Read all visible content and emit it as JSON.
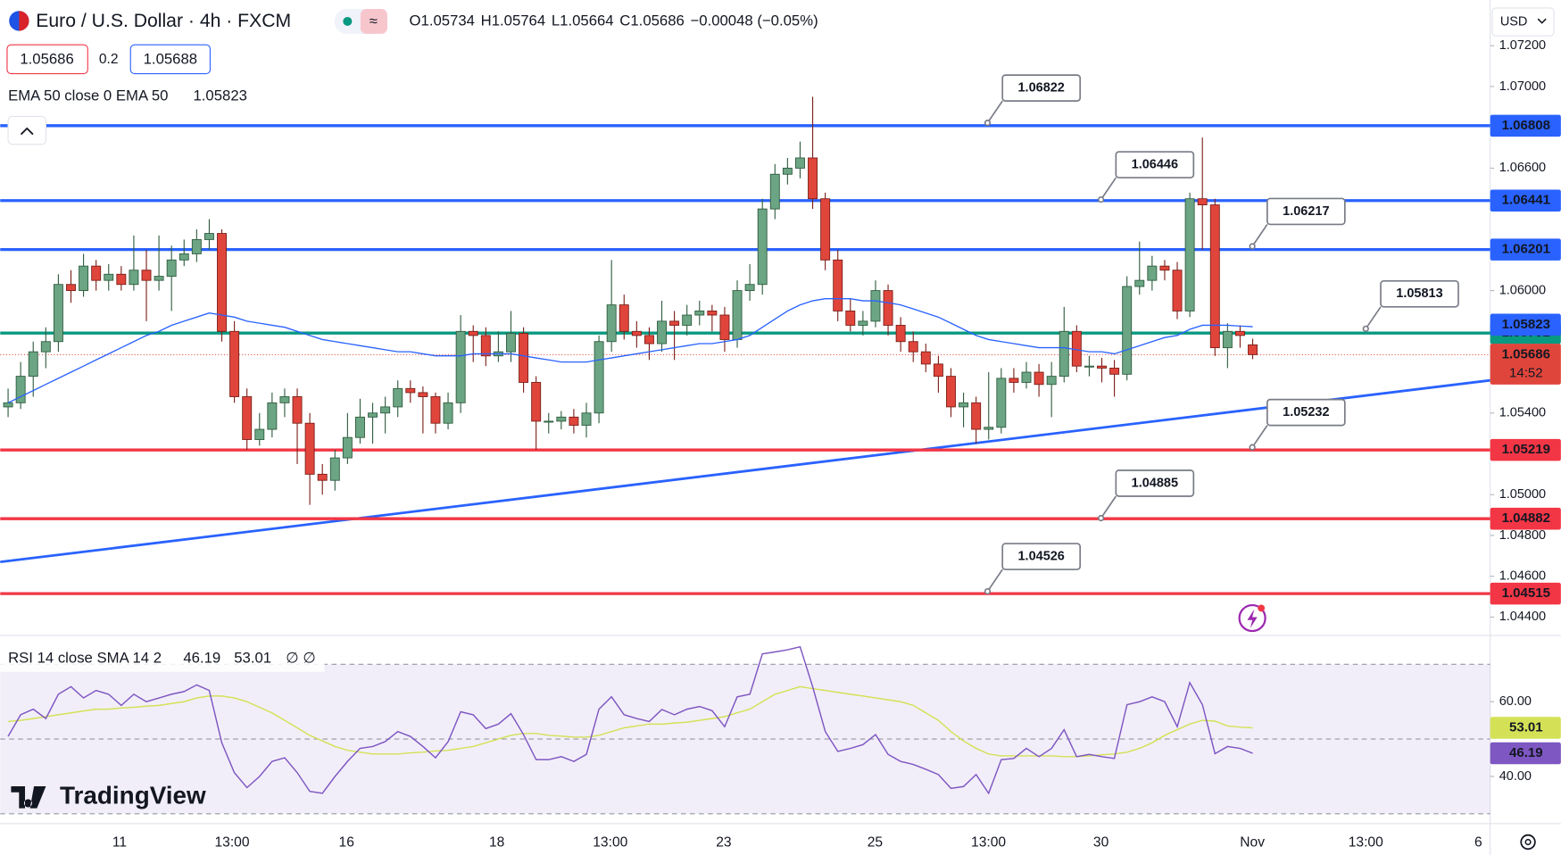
{
  "chart_data": {
    "type": "candlestick",
    "title": "Euro / U.S. Dollar · 4h · FXCM",
    "ohlc_prefixes": [
      "O",
      "H",
      "L",
      "C"
    ],
    "change": "−0.00048 (−0.05%)",
    "spread": "0.2",
    "ask": "1.05688",
    "currency": "USD",
    "countdown": "14:52",
    "brand": "TradingView",
    "colors": {
      "up": "#6ba583",
      "down": "#e0453b",
      "up_edge": "#2f5c3f",
      "down_edge": "#7a1f18"
    },
    "ylim": [
      1.04312,
      1.07424
    ],
    "yticks": [
      {
        "value": 1.072,
        "label": "1.07200"
      },
      {
        "value": 1.07,
        "label": "1.07000"
      },
      {
        "value": 1.066,
        "label": "1.06600"
      },
      {
        "value": 1.06,
        "label": "1.06000"
      },
      {
        "value": 1.054,
        "label": "1.05400"
      },
      {
        "value": 1.05,
        "label": "1.05000"
      },
      {
        "value": 1.048,
        "label": "1.04800"
      },
      {
        "value": 1.046,
        "label": "1.04600"
      },
      {
        "value": 1.044,
        "label": "1.04400"
      }
    ],
    "x_labels": [
      "11",
      "13:00",
      "16",
      "18",
      "13:00",
      "23",
      "25",
      "13:00",
      "30",
      "Nov",
      "13:00",
      "6"
    ],
    "candles": [
      [
        1.0543,
        1.0552,
        1.0538,
        1.0545
      ],
      [
        1.0545,
        1.0565,
        1.0542,
        1.0558
      ],
      [
        1.0558,
        1.0575,
        1.0548,
        1.057
      ],
      [
        1.057,
        1.0582,
        1.0562,
        1.0575
      ],
      [
        1.0575,
        1.0608,
        1.057,
        1.0603
      ],
      [
        1.0603,
        1.061,
        1.0594,
        1.06
      ],
      [
        1.06,
        1.0618,
        1.0597,
        1.0612
      ],
      [
        1.0612,
        1.0615,
        1.06,
        1.0605
      ],
      [
        1.0605,
        1.0613,
        1.06,
        1.0608
      ],
      [
        1.0608,
        1.0612,
        1.06,
        1.0603
      ],
      [
        1.0603,
        1.0627,
        1.06,
        1.061
      ],
      [
        1.061,
        1.062,
        1.0585,
        1.0605
      ],
      [
        1.0605,
        1.0627,
        1.06,
        1.0607
      ],
      [
        1.0607,
        1.0622,
        1.059,
        1.0615
      ],
      [
        1.0615,
        1.0625,
        1.0612,
        1.0618
      ],
      [
        1.0618,
        1.063,
        1.0614,
        1.0625
      ],
      [
        1.0625,
        1.0635,
        1.062,
        1.0628
      ],
      [
        1.0628,
        1.063,
        1.0575,
        1.058
      ],
      [
        1.058,
        1.0585,
        1.0545,
        1.0548
      ],
      [
        1.0548,
        1.0552,
        1.0522,
        1.0527
      ],
      [
        1.0527,
        1.054,
        1.0524,
        1.0532
      ],
      [
        1.0532,
        1.055,
        1.0528,
        1.0545
      ],
      [
        1.0545,
        1.0552,
        1.0538,
        1.0548
      ],
      [
        1.0548,
        1.0552,
        1.0515,
        1.0535
      ],
      [
        1.0535,
        1.054,
        1.0495,
        1.051
      ],
      [
        1.051,
        1.0515,
        1.05,
        1.0507
      ],
      [
        1.0507,
        1.0522,
        1.0502,
        1.0518
      ],
      [
        1.0518,
        1.054,
        1.0515,
        1.0528
      ],
      [
        1.0528,
        1.0547,
        1.0525,
        1.0538
      ],
      [
        1.0538,
        1.0545,
        1.0525,
        1.054
      ],
      [
        1.054,
        1.0548,
        1.053,
        1.0543
      ],
      [
        1.0543,
        1.0556,
        1.0538,
        1.0552
      ],
      [
        1.0552,
        1.0556,
        1.0545,
        1.055
      ],
      [
        1.055,
        1.0553,
        1.053,
        1.0548
      ],
      [
        1.0548,
        1.055,
        1.053,
        1.0535
      ],
      [
        1.0535,
        1.055,
        1.0532,
        1.0545
      ],
      [
        1.0545,
        1.0588,
        1.054,
        1.058
      ],
      [
        1.058,
        1.0583,
        1.0565,
        1.0578
      ],
      [
        1.0578,
        1.0582,
        1.0563,
        1.0568
      ],
      [
        1.0568,
        1.058,
        1.0565,
        1.057
      ],
      [
        1.057,
        1.059,
        1.0565,
        1.0579
      ],
      [
        1.0579,
        1.0582,
        1.055,
        1.0555
      ],
      [
        1.0555,
        1.0558,
        1.0522,
        1.0536
      ],
      [
        1.0536,
        1.054,
        1.053,
        1.0536
      ],
      [
        1.0536,
        1.0541,
        1.0532,
        1.0538
      ],
      [
        1.0538,
        1.0542,
        1.053,
        1.0534
      ],
      [
        1.0534,
        1.0545,
        1.0528,
        1.054
      ],
      [
        1.054,
        1.0578,
        1.0535,
        1.0575
      ],
      [
        1.0575,
        1.0615,
        1.057,
        1.0593
      ],
      [
        1.0593,
        1.0598,
        1.0576,
        1.058
      ],
      [
        1.058,
        1.0585,
        1.0572,
        1.0578
      ],
      [
        1.0578,
        1.0582,
        1.0566,
        1.0574
      ],
      [
        1.0574,
        1.0595,
        1.057,
        1.0585
      ],
      [
        1.0585,
        1.059,
        1.0566,
        1.0583
      ],
      [
        1.0583,
        1.0593,
        1.0578,
        1.0588
      ],
      [
        1.0588,
        1.0595,
        1.0583,
        1.059
      ],
      [
        1.059,
        1.0593,
        1.058,
        1.0588
      ],
      [
        1.0588,
        1.0592,
        1.057,
        1.0576
      ],
      [
        1.0576,
        1.0605,
        1.0572,
        1.06
      ],
      [
        1.06,
        1.0613,
        1.0595,
        1.0603
      ],
      [
        1.0603,
        1.0645,
        1.0598,
        1.064
      ],
      [
        1.064,
        1.0662,
        1.0635,
        1.0657
      ],
      [
        1.0657,
        1.0665,
        1.0652,
        1.066
      ],
      [
        1.066,
        1.0673,
        1.0655,
        1.0665
      ],
      [
        1.0665,
        1.0695,
        1.064,
        1.0645
      ],
      [
        1.0645,
        1.0648,
        1.061,
        1.0615
      ],
      [
        1.0615,
        1.062,
        1.0585,
        1.059
      ],
      [
        1.059,
        1.0596,
        1.058,
        1.0583
      ],
      [
        1.0583,
        1.059,
        1.0578,
        1.0585
      ],
      [
        1.0585,
        1.0605,
        1.0582,
        1.06
      ],
      [
        1.06,
        1.0603,
        1.0578,
        1.0583
      ],
      [
        1.0583,
        1.0587,
        1.057,
        1.0575
      ],
      [
        1.0575,
        1.058,
        1.0565,
        1.057
      ],
      [
        1.057,
        1.0574,
        1.056,
        1.0564
      ],
      [
        1.0564,
        1.0568,
        1.055,
        1.0558
      ],
      [
        1.0558,
        1.0562,
        1.0538,
        1.0543
      ],
      [
        1.0543,
        1.055,
        1.0533,
        1.0545
      ],
      [
        1.0545,
        1.0548,
        1.0525,
        1.0532
      ],
      [
        1.0532,
        1.056,
        1.0527,
        1.0533
      ],
      [
        1.0533,
        1.0562,
        1.053,
        1.0557
      ],
      [
        1.0557,
        1.0562,
        1.055,
        1.0555
      ],
      [
        1.0555,
        1.0565,
        1.0552,
        1.056
      ],
      [
        1.056,
        1.0564,
        1.0548,
        1.0554
      ],
      [
        1.0554,
        1.0565,
        1.0538,
        1.0558
      ],
      [
        1.0558,
        1.0592,
        1.0555,
        1.058
      ],
      [
        1.058,
        1.0583,
        1.056,
        1.0563
      ],
      [
        1.0563,
        1.0568,
        1.0558,
        1.0563
      ],
      [
        1.0563,
        1.0567,
        1.0555,
        1.0562
      ],
      [
        1.0562,
        1.0566,
        1.0548,
        1.0559
      ],
      [
        1.0559,
        1.0607,
        1.0556,
        1.0602
      ],
      [
        1.0602,
        1.0624,
        1.0598,
        1.0605
      ],
      [
        1.0605,
        1.0617,
        1.06,
        1.0612
      ],
      [
        1.0612,
        1.0615,
        1.0605,
        1.061
      ],
      [
        1.061,
        1.0614,
        1.0586,
        1.059
      ],
      [
        1.059,
        1.0648,
        1.0587,
        1.0645
      ],
      [
        1.0645,
        1.0675,
        1.062,
        1.0642
      ],
      [
        1.0642,
        1.0645,
        1.0568,
        1.0572
      ],
      [
        1.0572,
        1.0584,
        1.0562,
        1.058
      ],
      [
        1.058,
        1.0583,
        1.0572,
        1.0578
      ],
      [
        1.05734,
        1.05764,
        1.05664,
        1.05686
      ]
    ],
    "ema": {
      "name": "EMA 50 close 0 EMA 50",
      "color": "#2962ff",
      "values": [
        1.0545,
        1.0548,
        1.0551,
        1.0554,
        1.0557,
        1.056,
        1.0563,
        1.0566,
        1.0569,
        1.0572,
        1.0575,
        1.0578,
        1.058,
        1.0583,
        1.0585,
        1.0587,
        1.0589,
        1.0588,
        1.0587,
        1.0585,
        1.0584,
        1.0583,
        1.0582,
        1.058,
        1.0578,
        1.0576,
        1.0575,
        1.0574,
        1.0573,
        1.0572,
        1.0571,
        1.057,
        1.057,
        1.0569,
        1.0568,
        1.0568,
        1.0568,
        1.0569,
        1.0569,
        1.0569,
        1.0569,
        1.0568,
        1.0567,
        1.0566,
        1.0565,
        1.0565,
        1.0565,
        1.0566,
        1.0567,
        1.0568,
        1.0569,
        1.057,
        1.0571,
        1.0572,
        1.0573,
        1.0574,
        1.0574,
        1.0575,
        1.0576,
        1.0578,
        1.0582,
        1.0586,
        1.059,
        1.0593,
        1.0595,
        1.0596,
        1.0596,
        1.0596,
        1.0595,
        1.0595,
        1.0594,
        1.0593,
        1.0591,
        1.0589,
        1.0587,
        1.0584,
        1.0581,
        1.0578,
        1.0576,
        1.0575,
        1.0574,
        1.0573,
        1.0572,
        1.0572,
        1.0572,
        1.0571,
        1.057,
        1.057,
        1.0569,
        1.0571,
        1.0573,
        1.0575,
        1.0577,
        1.0578,
        1.0581,
        1.0583,
        1.0583,
        1.0583,
        1.05826,
        1.05823
      ]
    },
    "levels": [
      {
        "value": 1.06808,
        "color": "#2962ff"
      },
      {
        "value": 1.06441,
        "color": "#2962ff"
      },
      {
        "value": 1.06201,
        "color": "#2962ff"
      },
      {
        "value": 1.05792,
        "color": "#089981"
      },
      {
        "value": 1.05219,
        "color": "#f23645"
      },
      {
        "value": 1.04882,
        "color": "#f23645"
      },
      {
        "value": 1.04515,
        "color": "#f23645"
      }
    ],
    "callouts": [
      1.06822,
      1.06446,
      1.06217,
      1.05813,
      1.05232,
      1.04885,
      1.04526
    ],
    "trendline": {
      "values": [
        1.0467,
        1.0556
      ],
      "color": "#2962ff"
    },
    "indicator": {
      "name": "RSI 14 close SMA 14 2",
      "extra": "∅ ∅",
      "ylim": [
        27.5,
        77.3
      ],
      "yticks": [
        {
          "value": 60,
          "label": "60.00"
        },
        {
          "value": 40,
          "label": "40.00"
        }
      ],
      "levels": [
        70,
        50,
        30
      ],
      "rsi": {
        "color": "#7e57c2",
        "values": [
          50.7,
          56.5,
          58,
          55.5,
          62,
          64,
          61,
          63,
          62,
          59,
          62,
          60,
          61,
          62,
          62.7,
          64.5,
          63,
          49,
          41,
          37,
          40,
          44,
          45,
          41,
          36,
          35.5,
          40,
          44,
          47.5,
          48,
          49.3,
          52,
          50.7,
          48,
          45,
          49.3,
          57.3,
          56.5,
          52.8,
          54,
          56.8,
          51.2,
          44.5,
          44.5,
          45.3,
          44,
          45.9,
          58,
          61.3,
          56.5,
          55.5,
          54.7,
          57.9,
          56.5,
          58,
          58.7,
          57.6,
          53.3,
          61.3,
          62,
          72.8,
          73.3,
          73.9,
          74.7,
          64,
          52,
          46.7,
          47.5,
          48.5,
          51.2,
          45.9,
          44,
          43.2,
          41.9,
          40.5,
          36.8,
          37.3,
          40.5,
          35.5,
          44.5,
          44.8,
          47.5,
          45.3,
          47.5,
          52.5,
          45.3,
          45.9,
          45.3,
          44.8,
          59.2,
          60,
          61.3,
          60,
          53.3,
          65.1,
          59.2,
          46.1,
          48,
          47.5,
          46.19
        ]
      },
      "sma": {
        "color": "#d4e157",
        "values": [
          54.7,
          55,
          55.5,
          56,
          56.5,
          57,
          57.5,
          58,
          58,
          58.3,
          58.5,
          58.8,
          59,
          59.5,
          60,
          61,
          61.5,
          61.5,
          61,
          60,
          58.5,
          57,
          55,
          53,
          51,
          49.5,
          48,
          47,
          46.5,
          46,
          46,
          46,
          46.3,
          46.5,
          46.8,
          47,
          47.5,
          48,
          49,
          50,
          51,
          51.5,
          51.5,
          51,
          50.8,
          50.5,
          50.5,
          51,
          52,
          53,
          53.5,
          54,
          54,
          54.3,
          54.5,
          55,
          55.5,
          56,
          57,
          58,
          60,
          62,
          63,
          64,
          63.5,
          63,
          62.5,
          62,
          61.5,
          61,
          60.5,
          60,
          59,
          57,
          55,
          52,
          49.5,
          47.5,
          46,
          45.5,
          45.5,
          45.5,
          45.5,
          45.5,
          45.3,
          45.3,
          45.5,
          45.8,
          46,
          46.5,
          47.5,
          49,
          51,
          52.5,
          54,
          55,
          54.8,
          53.5,
          53.2,
          53.01
        ]
      }
    }
  }
}
